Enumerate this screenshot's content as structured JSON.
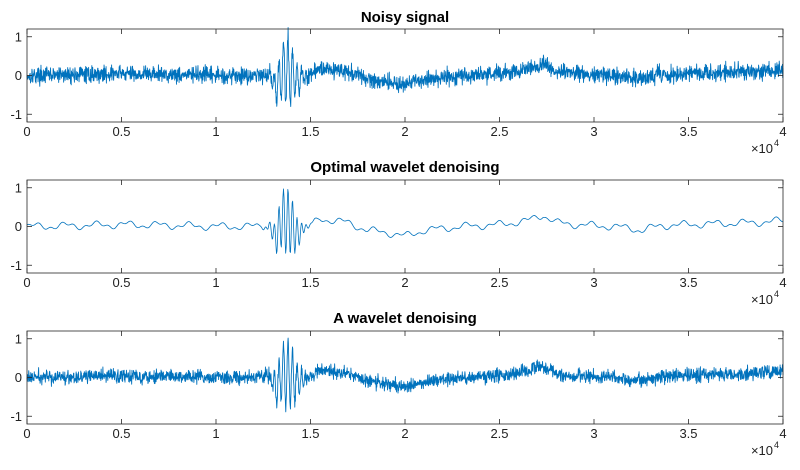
{
  "chart_data": [
    {
      "type": "line",
      "title": "Noisy signal",
      "xlabel": "",
      "ylabel": "",
      "xlim": [
        0,
        40000
      ],
      "ylim": [
        -1.2,
        1.2
      ],
      "xticks": [
        "0",
        "0.5",
        "1",
        "1.5",
        "2",
        "2.5",
        "3",
        "3.5",
        "4"
      ],
      "yticks": [
        "-1",
        "0",
        "1"
      ],
      "x_multiplier": {
        "base": "×10",
        "exponent": "4"
      },
      "grid": false,
      "color": "#0072BD",
      "noise_level": 0.13,
      "series": [
        {
          "x": [
            0,
            2500,
            5000,
            7500,
            10000,
            12000,
            12800,
            13200,
            13500,
            13800,
            14200,
            14800,
            15500,
            17000,
            18000,
            19000,
            20000,
            21000,
            23000,
            25000,
            26500,
            27300,
            28000,
            29000,
            31000,
            32000,
            32500,
            33500,
            35000,
            37000,
            38500,
            40000
          ],
          "y": [
            0.0,
            0.02,
            0.05,
            0.03,
            0.0,
            0.0,
            0.05,
            -0.3,
            0.1,
            0.15,
            -0.1,
            -0.05,
            0.2,
            0.1,
            -0.1,
            -0.15,
            -0.25,
            -0.1,
            0.0,
            0.05,
            0.15,
            0.3,
            0.1,
            0.05,
            0.0,
            -0.05,
            -0.1,
            0.02,
            0.05,
            0.08,
            0.1,
            0.15
          ]
        }
      ]
    },
    {
      "type": "line",
      "title": "Optimal wavelet denoising",
      "xlabel": "",
      "ylabel": "",
      "xlim": [
        0,
        40000
      ],
      "ylim": [
        -1.2,
        1.2
      ],
      "xticks": [
        "0",
        "0.5",
        "1",
        "1.5",
        "2",
        "2.5",
        "3",
        "3.5",
        "4"
      ],
      "yticks": [
        "-1",
        "0",
        "1"
      ],
      "x_multiplier": {
        "base": "×10",
        "exponent": "4"
      },
      "grid": false,
      "color": "#0072BD",
      "noise_level": 0.0,
      "series": [
        {
          "x": [
            0,
            2500,
            5000,
            7500,
            10000,
            12000,
            12800,
            13200,
            13500,
            13800,
            14200,
            14800,
            15500,
            17000,
            18000,
            19000,
            20000,
            21000,
            23000,
            25000,
            26500,
            27300,
            28000,
            29000,
            31000,
            32000,
            32500,
            33500,
            35000,
            37000,
            38500,
            40000
          ],
          "y": [
            0.0,
            0.02,
            0.05,
            0.03,
            0.0,
            0.0,
            0.05,
            -0.3,
            0.1,
            0.15,
            -0.1,
            -0.05,
            0.2,
            0.1,
            -0.1,
            -0.15,
            -0.25,
            -0.1,
            0.0,
            0.05,
            0.15,
            0.3,
            0.1,
            0.05,
            0.0,
            -0.05,
            -0.1,
            0.02,
            0.05,
            0.08,
            0.1,
            0.15
          ]
        }
      ]
    },
    {
      "type": "line",
      "title": "A wavelet denoising",
      "xlabel": "",
      "ylabel": "",
      "xlim": [
        0,
        40000
      ],
      "ylim": [
        -1.2,
        1.2
      ],
      "xticks": [
        "0",
        "0.5",
        "1",
        "1.5",
        "2",
        "2.5",
        "3",
        "3.5",
        "4"
      ],
      "yticks": [
        "-1",
        "0",
        "1"
      ],
      "x_multiplier": {
        "base": "×10",
        "exponent": "4"
      },
      "grid": false,
      "color": "#0072BD",
      "noise_level": 0.11,
      "series": [
        {
          "x": [
            0,
            2500,
            5000,
            7500,
            10000,
            12000,
            12800,
            13200,
            13500,
            13800,
            14200,
            14800,
            15500,
            17000,
            18000,
            19000,
            20000,
            21000,
            23000,
            25000,
            26500,
            27300,
            28000,
            29000,
            31000,
            32000,
            32500,
            33500,
            35000,
            37000,
            38500,
            40000
          ],
          "y": [
            0.0,
            0.02,
            0.05,
            0.03,
            0.0,
            0.0,
            0.05,
            -0.3,
            0.1,
            0.15,
            -0.1,
            -0.05,
            0.2,
            0.1,
            -0.1,
            -0.15,
            -0.25,
            -0.1,
            0.0,
            0.05,
            0.15,
            0.3,
            0.1,
            0.05,
            0.0,
            -0.05,
            -0.1,
            0.02,
            0.05,
            0.08,
            0.1,
            0.15
          ]
        }
      ]
    }
  ]
}
